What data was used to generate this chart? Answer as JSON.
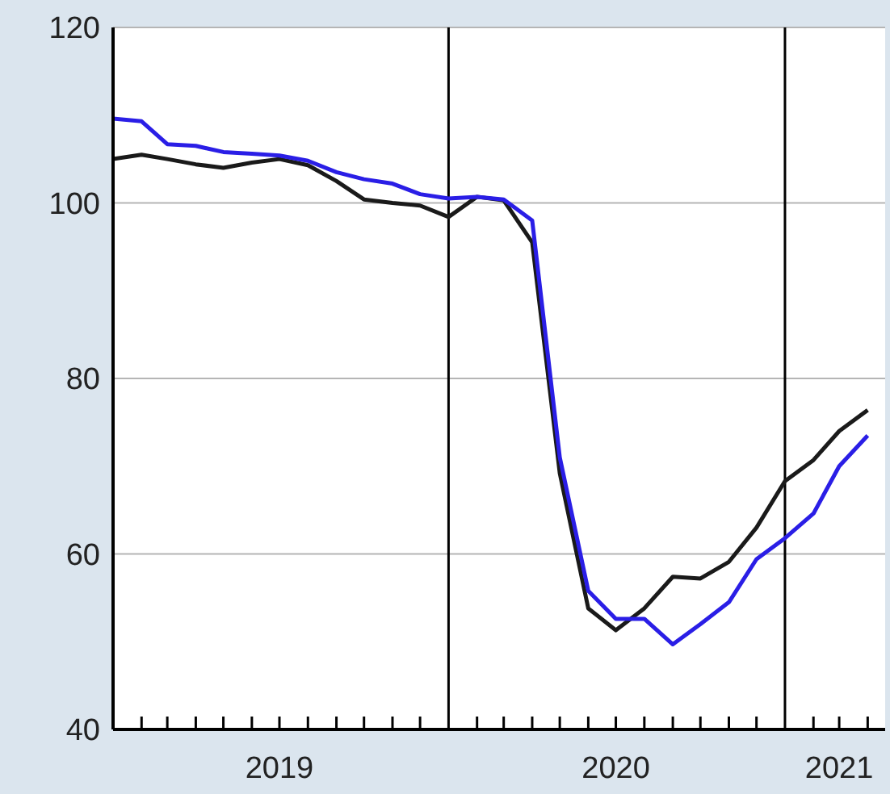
{
  "chart_data": {
    "type": "line",
    "x": [
      "2019-01",
      "2019-02",
      "2019-03",
      "2019-04",
      "2019-05",
      "2019-06",
      "2019-07",
      "2019-08",
      "2019-09",
      "2019-10",
      "2019-11",
      "2019-12",
      "2020-01",
      "2020-02",
      "2020-03",
      "2020-04",
      "2020-05",
      "2020-06",
      "2020-07",
      "2020-08",
      "2020-09",
      "2020-10",
      "2020-11",
      "2020-12",
      "2021-01",
      "2021-02",
      "2021-03",
      "2021-04"
    ],
    "series": [
      {
        "color": "#1a1a1a",
        "values": [
          105,
          105.5,
          105,
          104.4,
          104,
          104.6,
          105,
          104.3,
          102.5,
          100.4,
          100,
          99.7,
          98.4,
          100.7,
          100.3,
          95.5,
          69.2,
          53.8,
          51.3,
          53.8,
          57.4,
          57.2,
          59.1,
          63,
          68.3,
          70.7,
          74,
          76.4
        ]
      },
      {
        "color": "#2a1ee6",
        "values": [
          109.6,
          109.3,
          106.7,
          106.5,
          105.8,
          105.6,
          105.4,
          104.8,
          103.5,
          102.7,
          102.2,
          101,
          100.5,
          100.7,
          100.4,
          98,
          71,
          55.8,
          52.6,
          52.6,
          49.7,
          52,
          54.5,
          59.4,
          61.8,
          64.6,
          70,
          73.5
        ]
      }
    ],
    "xlim": [
      "2019-01",
      "2021-04-20"
    ],
    "xticks": [
      {
        "value": "2019-02",
        "label": null
      },
      {
        "value": "2019-03",
        "label": null
      },
      {
        "value": "2019-04",
        "label": null
      },
      {
        "value": "2019-05",
        "label": null
      },
      {
        "value": "2019-06",
        "label": null
      },
      {
        "value": "2019-07",
        "label": "2019"
      },
      {
        "value": "2019-08",
        "label": null
      },
      {
        "value": "2019-09",
        "label": null
      },
      {
        "value": "2019-10",
        "label": null
      },
      {
        "value": "2019-11",
        "label": null
      },
      {
        "value": "2019-12",
        "label": null
      },
      {
        "value": "2020-02",
        "label": null
      },
      {
        "value": "2020-03",
        "label": null
      },
      {
        "value": "2020-04",
        "label": null
      },
      {
        "value": "2020-05",
        "label": null
      },
      {
        "value": "2020-06",
        "label": null
      },
      {
        "value": "2020-07",
        "label": "2020"
      },
      {
        "value": "2020-08",
        "label": null
      },
      {
        "value": "2020-09",
        "label": null
      },
      {
        "value": "2020-10",
        "label": null
      },
      {
        "value": "2020-11",
        "label": null
      },
      {
        "value": "2020-12",
        "label": null
      },
      {
        "value": "2021-02",
        "label": null
      },
      {
        "value": "2021-03",
        "label": "2021"
      },
      {
        "value": "2021-04",
        "label": null
      }
    ],
    "ylim": [
      40,
      120
    ],
    "yticks": [
      40,
      60,
      80,
      100,
      120
    ],
    "grid": "y",
    "marker": "none",
    "line_style": "solid",
    "ref_lines": [
      {
        "axis": "x",
        "value": "2020-01",
        "color": "#000000"
      },
      {
        "axis": "x",
        "value": "2021-01",
        "color": "#000000"
      }
    ]
  }
}
